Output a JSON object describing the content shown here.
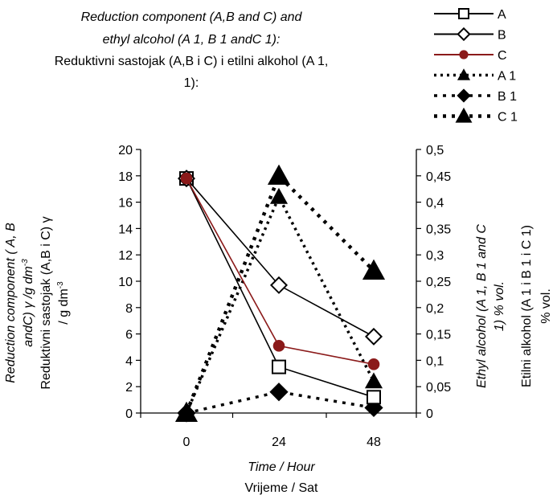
{
  "chart_data": {
    "type": "line",
    "title_line1": "Reduction  component  (A,B and C) and",
    "title_line2": "ethyl alcohol (A 1, B 1 andC 1):",
    "title_line3": "Reduktivni  sastojak (A,B i C) i etilni alkohol (A 1,",
    "title_line4": "1):",
    "x": [
      "0",
      "24",
      "48"
    ],
    "xlabel_en": "Time / Hour",
    "xlabel_hr": "Vrijeme / Sat",
    "ylabel_left_en_1": "Reduction component ( A, B",
    "ylabel_left_en_2": "andC) γ /g dm",
    "ylabel_left_hr_1": "Reduktivni sastojak (A,B i C) γ",
    "ylabel_left_hr_2": "/ g dm",
    "ylabel_exp": "-3",
    "ylabel_right_en_1": "Ethyl alcohol (A 1, B 1 and C",
    "ylabel_right_en_2": "1) % vol.",
    "ylabel_right_hr_1": "Etilni alkohol (A 1 i B 1 i C 1)",
    "ylabel_right_hr_2": "% vol.",
    "y_left_ticks": [
      "0",
      "2",
      "4",
      "6",
      "8",
      "10",
      "12",
      "14",
      "16",
      "18",
      "20"
    ],
    "y_right_ticks": [
      "0",
      "0,05",
      "0,1",
      "0,15",
      "0,2",
      "0,25",
      "0,3",
      "0,35",
      "0,4",
      "0,45",
      "0,5"
    ],
    "ylim_left": [
      0,
      20
    ],
    "ylim_right": [
      0,
      0.5
    ],
    "legend_position": "top-right",
    "series": [
      {
        "name": "A",
        "axis": "left",
        "marker": "square-open",
        "line": "solid",
        "color": "#000000",
        "values": [
          17.8,
          3.5,
          1.2
        ]
      },
      {
        "name": "B",
        "axis": "left",
        "marker": "diamond-open",
        "line": "solid",
        "color": "#000000",
        "values": [
          17.8,
          9.7,
          5.8
        ]
      },
      {
        "name": "C",
        "axis": "left",
        "marker": "circle-filled",
        "line": "solid",
        "color": "#8b1a1a",
        "values": [
          17.8,
          5.1,
          3.7
        ]
      },
      {
        "name": "A 1",
        "axis": "right",
        "marker": "triangle-filled",
        "line": "dashed",
        "color": "#000000",
        "values": [
          0,
          0.41,
          0.06
        ]
      },
      {
        "name": "B 1",
        "axis": "right",
        "marker": "diamond-filled",
        "line": "dotted",
        "color": "#000000",
        "values": [
          0,
          0.04,
          0.01
        ]
      },
      {
        "name": "C 1",
        "axis": "right",
        "marker": "triangle-filled",
        "line": "dotted",
        "color": "#000000",
        "values": [
          0,
          0.45,
          0.27
        ]
      }
    ]
  }
}
